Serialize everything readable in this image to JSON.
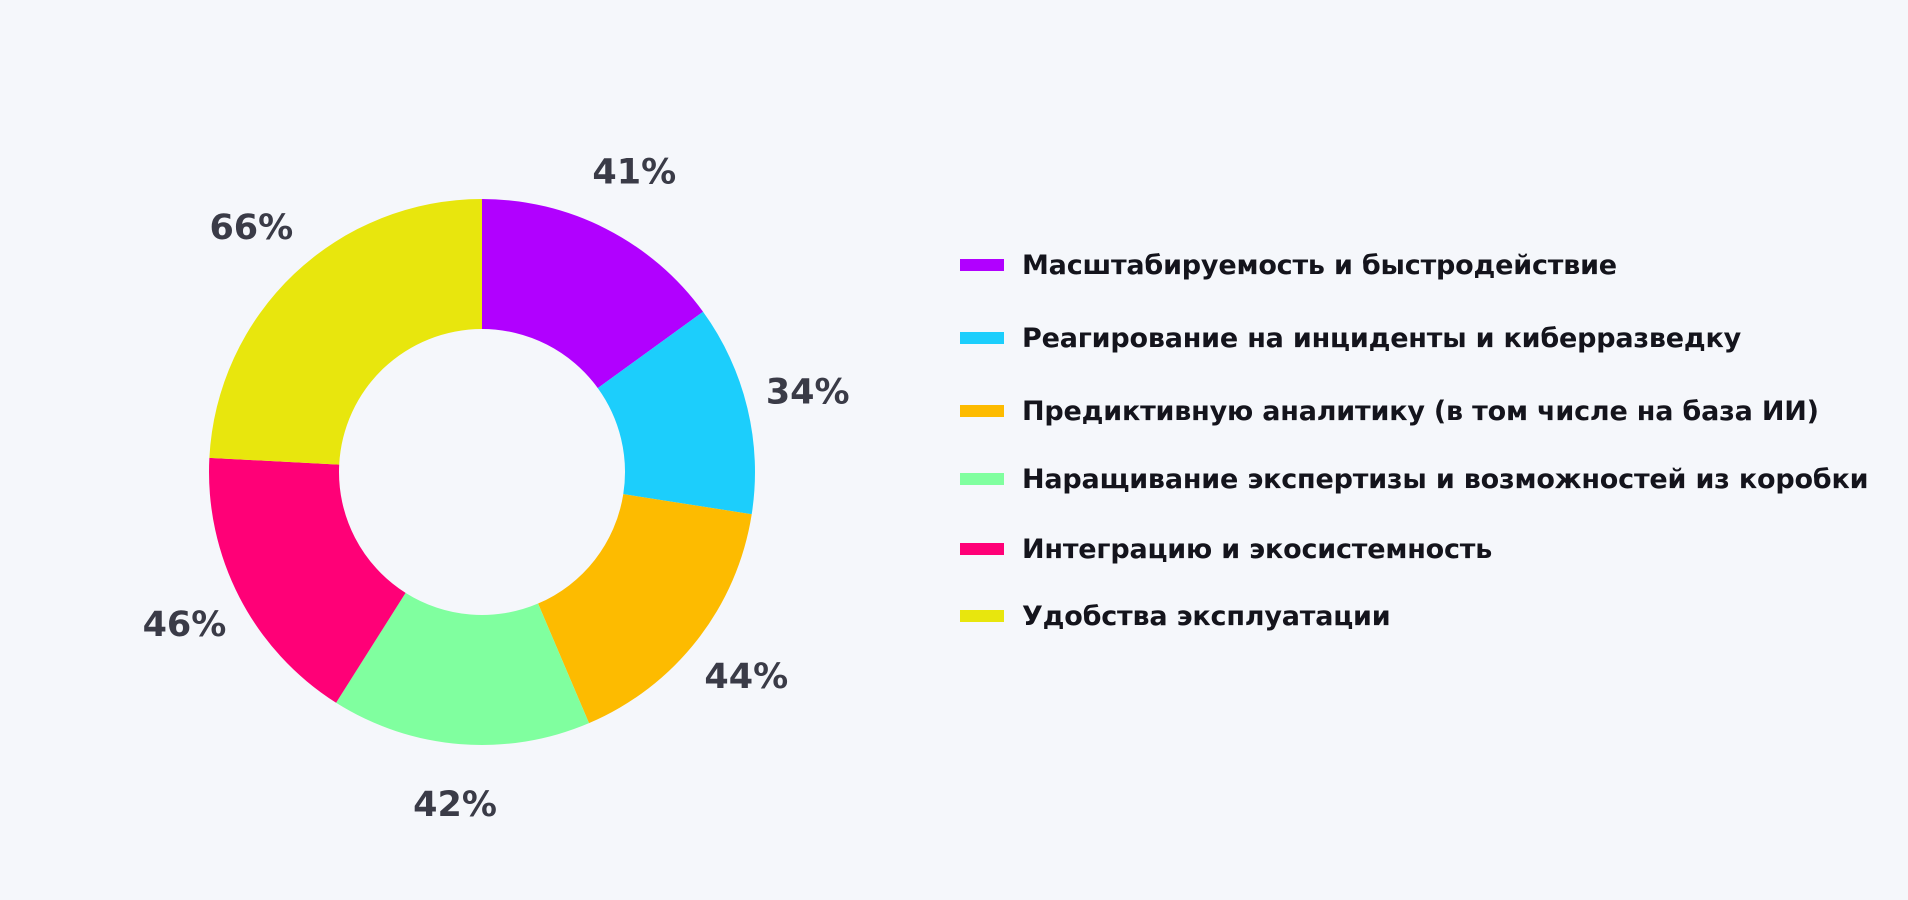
{
  "chart_data": {
    "type": "pie",
    "donut": true,
    "title": "",
    "legend_position": "right",
    "grid": false,
    "categories": [
      "Масштабируемость и быстродействие",
      "Реагирование на инциденты и киберразведку",
      "Предиктивную аналитику (в том числе на база ИИ)",
      "Наращивание экспертизы и возможностей из коробки",
      "Интеграцию и экосистемность",
      "Удобства эксплуатации"
    ],
    "values": [
      41,
      34,
      44,
      42,
      46,
      66
    ],
    "value_labels": [
      "41%",
      "34%",
      "44%",
      "42%",
      "46%",
      "66%"
    ],
    "colors": [
      "#b100ff",
      "#1ccefc",
      "#fdbb00",
      "#80ff9f",
      "#ff0077",
      "#e8e60d"
    ]
  }
}
